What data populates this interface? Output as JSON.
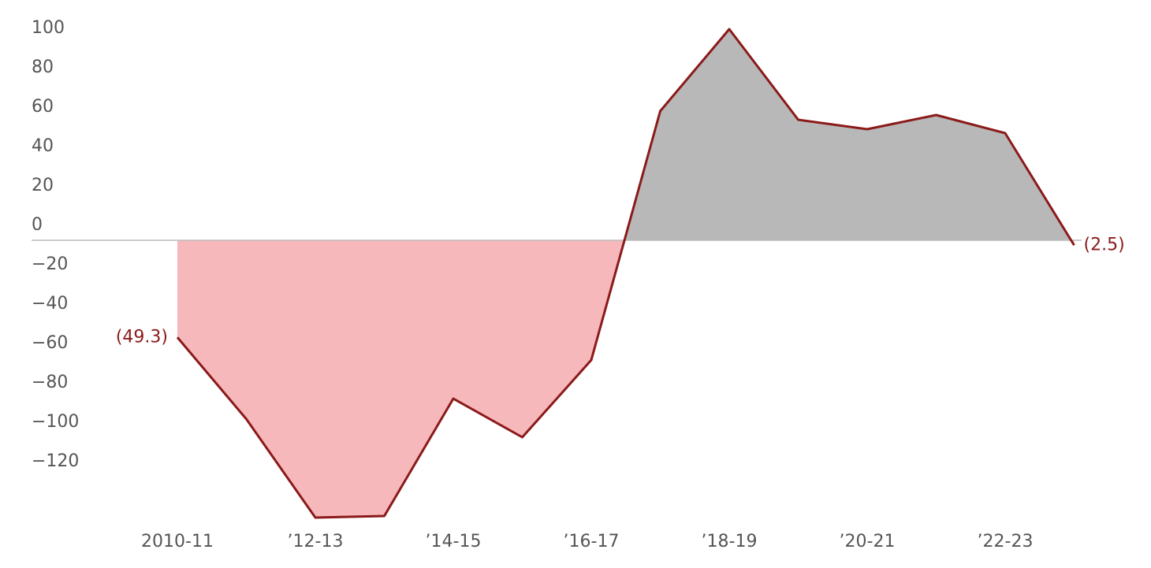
{
  "chart_data": {
    "type": "area",
    "categories": [
      "2010-11",
      null,
      "’12-13",
      null,
      "’14-15",
      null,
      "’16-17",
      null,
      "’18-19",
      null,
      "’20-21",
      null,
      "’22-23",
      null
    ],
    "series": [
      {
        "color": "#8b1a1a",
        "positive_fill": "#b8b8b8",
        "negative_fill": "#f7b8bb",
        "values": [
          -49.3,
          -90.8,
          -140.8,
          -140,
          -80.4,
          -100,
          -60.8,
          65.6,
          107.2,
          61.2,
          56.4,
          63.6,
          54.4,
          -2.5
        ],
        "value_labels": [
          "(49.3)",
          null,
          null,
          null,
          null,
          null,
          null,
          null,
          null,
          null,
          null,
          null,
          null,
          "(2.5)"
        ]
      }
    ],
    "ylim": [
      -150,
      110
    ],
    "yticks": [
      100,
      80,
      60,
      40,
      20,
      0,
      {
        "value": -20,
        "label": "−20"
      },
      {
        "value": -40,
        "label": "−40"
      },
      {
        "value": -60,
        "label": "−60"
      },
      {
        "value": -80,
        "label": "−80"
      },
      {
        "value": -100,
        "label": "−100"
      },
      {
        "value": -120,
        "label": "−120"
      }
    ]
  }
}
